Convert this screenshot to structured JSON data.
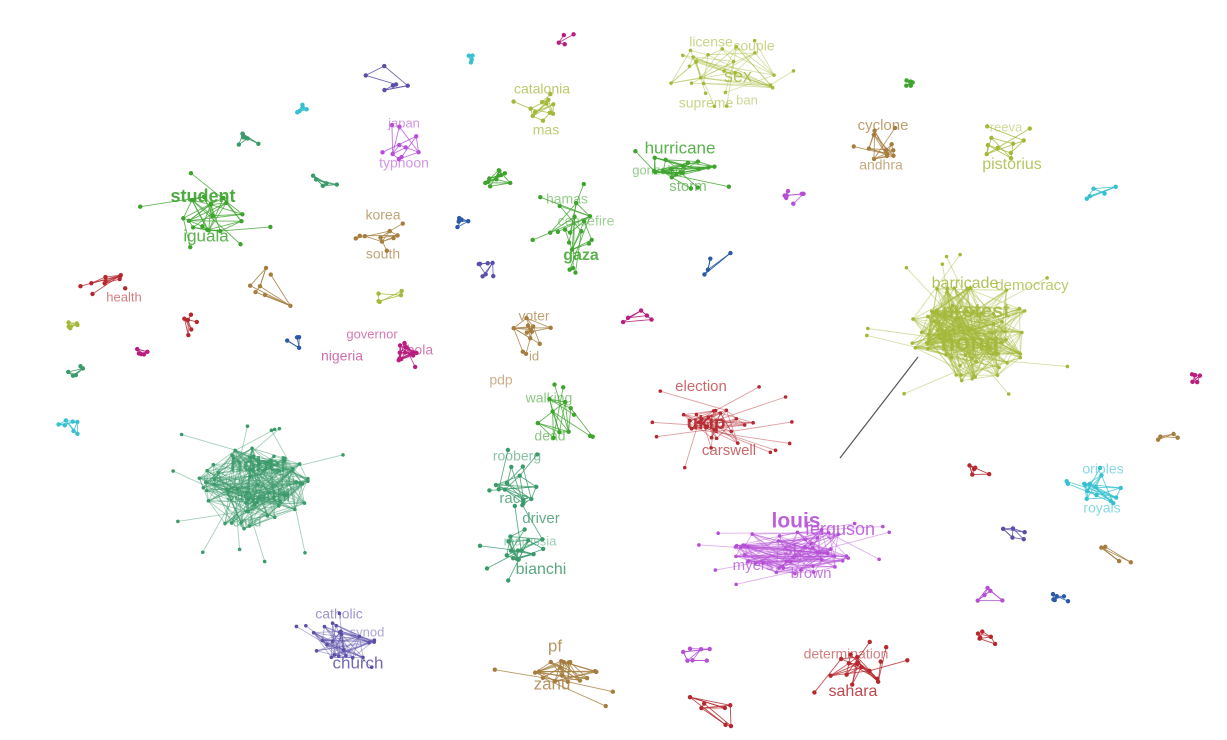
{
  "colors": {
    "olive": "#a4b83a",
    "green": "#3ea42e",
    "teal": "#3b9a6a",
    "brown": "#a57d3f",
    "red": "#b4282e",
    "purple": "#b550d6",
    "indigo": "#5a4fa8",
    "magenta": "#b81e7e",
    "cyan": "#37c0cf",
    "blue": "#2a59a8",
    "bridge": "#555555"
  },
  "labels": {
    "hong": "hong",
    "protest": "protest",
    "barricade": "barricade",
    "democracy": "democracy",
    "nobel": "nobel",
    "satyarthi": "satyarthi",
    "kailash": "kailash",
    "child": "child",
    "louis": "louis",
    "ferguson": "ferguson",
    "st": "st.",
    "myers": "myers",
    "brown": "brown",
    "ukip": "ukip",
    "election": "election",
    "carswell": "carswell",
    "student": "student",
    "iguala": "iguala",
    "hurricane": "hurricane",
    "gonzalo": "gonzalo",
    "storm": "storm",
    "gaza": "gaza",
    "hamas": "hamas",
    "ceasefire": "ceasefire",
    "catalonia": "catalonia",
    "mas": "mas",
    "sex": "sex",
    "license": "license",
    "couple": "couple",
    "supreme": "supreme",
    "ban": "ban",
    "cyclone": "cyclone",
    "andhra": "andhra",
    "pistorius": "pistorius",
    "reeva": "reeva",
    "japan": "japan",
    "typhoon": "typhoon",
    "korea": "korea",
    "south": "south",
    "health": "health",
    "governor": "governor",
    "nigeria": "nigeria",
    "ebola": "ebola",
    "voter": "voter",
    "id": "id",
    "pdp": "pdp",
    "walking": "walking",
    "dead": "dead",
    "rooberg": "rooberg",
    "race": "race",
    "driver": "driver",
    "marussia": "marussia",
    "bianchi": "bianchi",
    "catholic": "catholic",
    "synod": "synod",
    "church": "church",
    "pf": "pf",
    "zanu": "zanu",
    "determination": "determination",
    "sahara": "sahara",
    "orioles": "orioles",
    "royals": "royals",
    "tour": "tour"
  }
}
